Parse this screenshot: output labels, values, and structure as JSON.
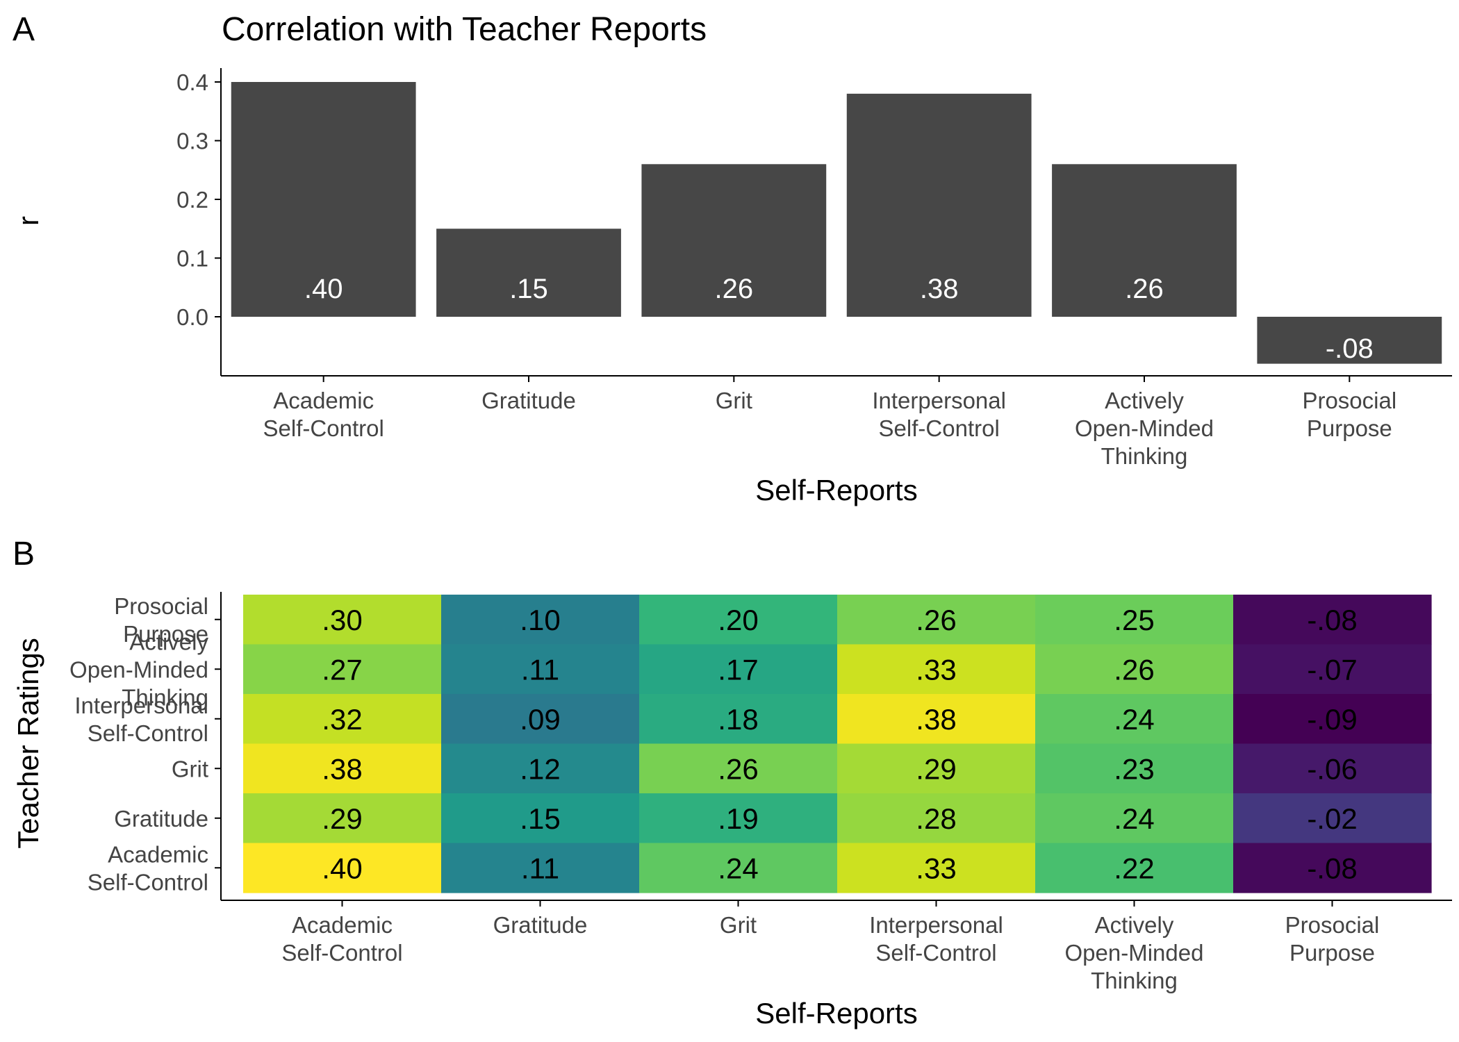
{
  "panels": {
    "a": {
      "tag": "A"
    },
    "b": {
      "tag": "B"
    }
  },
  "chart_data": [
    {
      "type": "bar",
      "title": "Correlation with Teacher Reports",
      "xlabel": "Self-Reports",
      "ylabel": "r",
      "categories": [
        [
          "Academic",
          "Self-Control"
        ],
        [
          "Gratitude"
        ],
        [
          "Grit"
        ],
        [
          "Interpersonal",
          "Self-Control"
        ],
        [
          "Actively",
          "Open-Minded",
          "Thinking"
        ],
        [
          "Prosocial",
          "Purpose"
        ]
      ],
      "values": [
        0.4,
        0.15,
        0.26,
        0.38,
        0.26,
        -0.08
      ],
      "data_labels": [
        ".40",
        ".15",
        ".26",
        ".38",
        ".26",
        "-.08"
      ],
      "yticks": [
        0.0,
        0.1,
        0.2,
        0.3,
        0.4
      ],
      "ytick_labels": [
        "0.0",
        "0.1",
        "0.2",
        "0.3",
        "0.4"
      ],
      "ylim": [
        -0.1,
        0.42
      ],
      "bar_color": "#474747",
      "label_color": "#ffffff",
      "grid": false
    },
    {
      "type": "heatmap",
      "xlabel": "Self-Reports",
      "ylabel": "Teacher Ratings",
      "x_categories": [
        [
          "Academic",
          "Self-Control"
        ],
        [
          "Gratitude"
        ],
        [
          "Grit"
        ],
        [
          "Interpersonal",
          "Self-Control"
        ],
        [
          "Actively",
          "Open-Minded",
          "Thinking"
        ],
        [
          "Prosocial",
          "Purpose"
        ]
      ],
      "y_categories_top_to_bottom": [
        [
          "Prosocial",
          "Purpose"
        ],
        [
          "Actively",
          "Open-Minded",
          "Thinking"
        ],
        [
          "Interpersonal",
          "Self-Control"
        ],
        [
          "Grit"
        ],
        [
          "Gratitude"
        ],
        [
          "Academic",
          "Self-Control"
        ]
      ],
      "rows_top_to_bottom": [
        {
          "values": [
            0.3,
            0.1,
            0.2,
            0.26,
            0.25,
            -0.08
          ],
          "labels": [
            ".30",
            ".10",
            ".20",
            ".26",
            ".25",
            "-.08"
          ]
        },
        {
          "values": [
            0.27,
            0.11,
            0.17,
            0.33,
            0.26,
            -0.07
          ],
          "labels": [
            ".27",
            ".11",
            ".17",
            ".33",
            ".26",
            "-.07"
          ]
        },
        {
          "values": [
            0.32,
            0.09,
            0.18,
            0.38,
            0.24,
            -0.09
          ],
          "labels": [
            ".32",
            ".09",
            ".18",
            ".38",
            ".24",
            "-.09"
          ]
        },
        {
          "values": [
            0.38,
            0.12,
            0.26,
            0.29,
            0.23,
            -0.06
          ],
          "labels": [
            ".38",
            ".12",
            ".26",
            ".29",
            ".23",
            "-.06"
          ]
        },
        {
          "values": [
            0.29,
            0.15,
            0.19,
            0.28,
            0.24,
            -0.02
          ],
          "labels": [
            ".29",
            ".15",
            ".19",
            ".28",
            ".24",
            "-.02"
          ]
        },
        {
          "values": [
            0.4,
            0.11,
            0.24,
            0.33,
            0.22,
            -0.08
          ],
          "labels": [
            ".40",
            ".11",
            ".24",
            ".33",
            ".22",
            "-.08"
          ]
        }
      ],
      "color_scale": "viridis",
      "value_range": [
        -0.09,
        0.4
      ],
      "legend": "none",
      "label_color": "#000000"
    }
  ]
}
